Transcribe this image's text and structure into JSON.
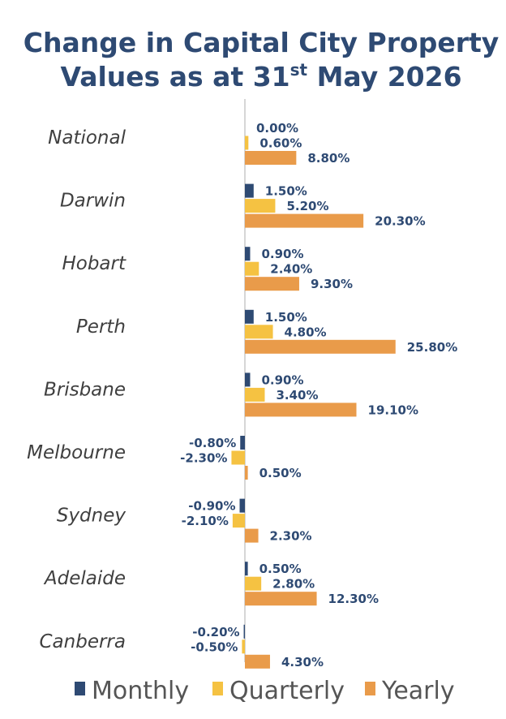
{
  "chart_data": {
    "type": "bar",
    "orientation": "horizontal",
    "title_line1": "Change in Capital City Property",
    "title_line2_main": "Values as at 31",
    "title_line2_sup": "st",
    "title_line2_tail": " May 2026",
    "categories": [
      "National",
      "Darwin",
      "Hobart",
      "Perth",
      "Brisbane",
      "Melbourne",
      "Sydney",
      "Adelaide",
      "Canberra"
    ],
    "series": [
      {
        "name": "Monthly",
        "color": "#2e4a73",
        "values": [
          0.0,
          1.5,
          0.9,
          1.5,
          0.9,
          -0.8,
          -0.9,
          0.5,
          -0.2
        ]
      },
      {
        "name": "Quarterly",
        "color": "#f5c242",
        "values": [
          0.6,
          5.2,
          2.4,
          4.8,
          3.4,
          -2.3,
          -2.1,
          2.8,
          -0.5
        ]
      },
      {
        "name": "Yearly",
        "color": "#e99b4a",
        "values": [
          8.8,
          20.3,
          9.3,
          25.8,
          19.1,
          0.5,
          2.3,
          12.3,
          4.3
        ]
      }
    ],
    "value_format": "percent_2dp",
    "legend_position": "bottom",
    "grid": false
  }
}
